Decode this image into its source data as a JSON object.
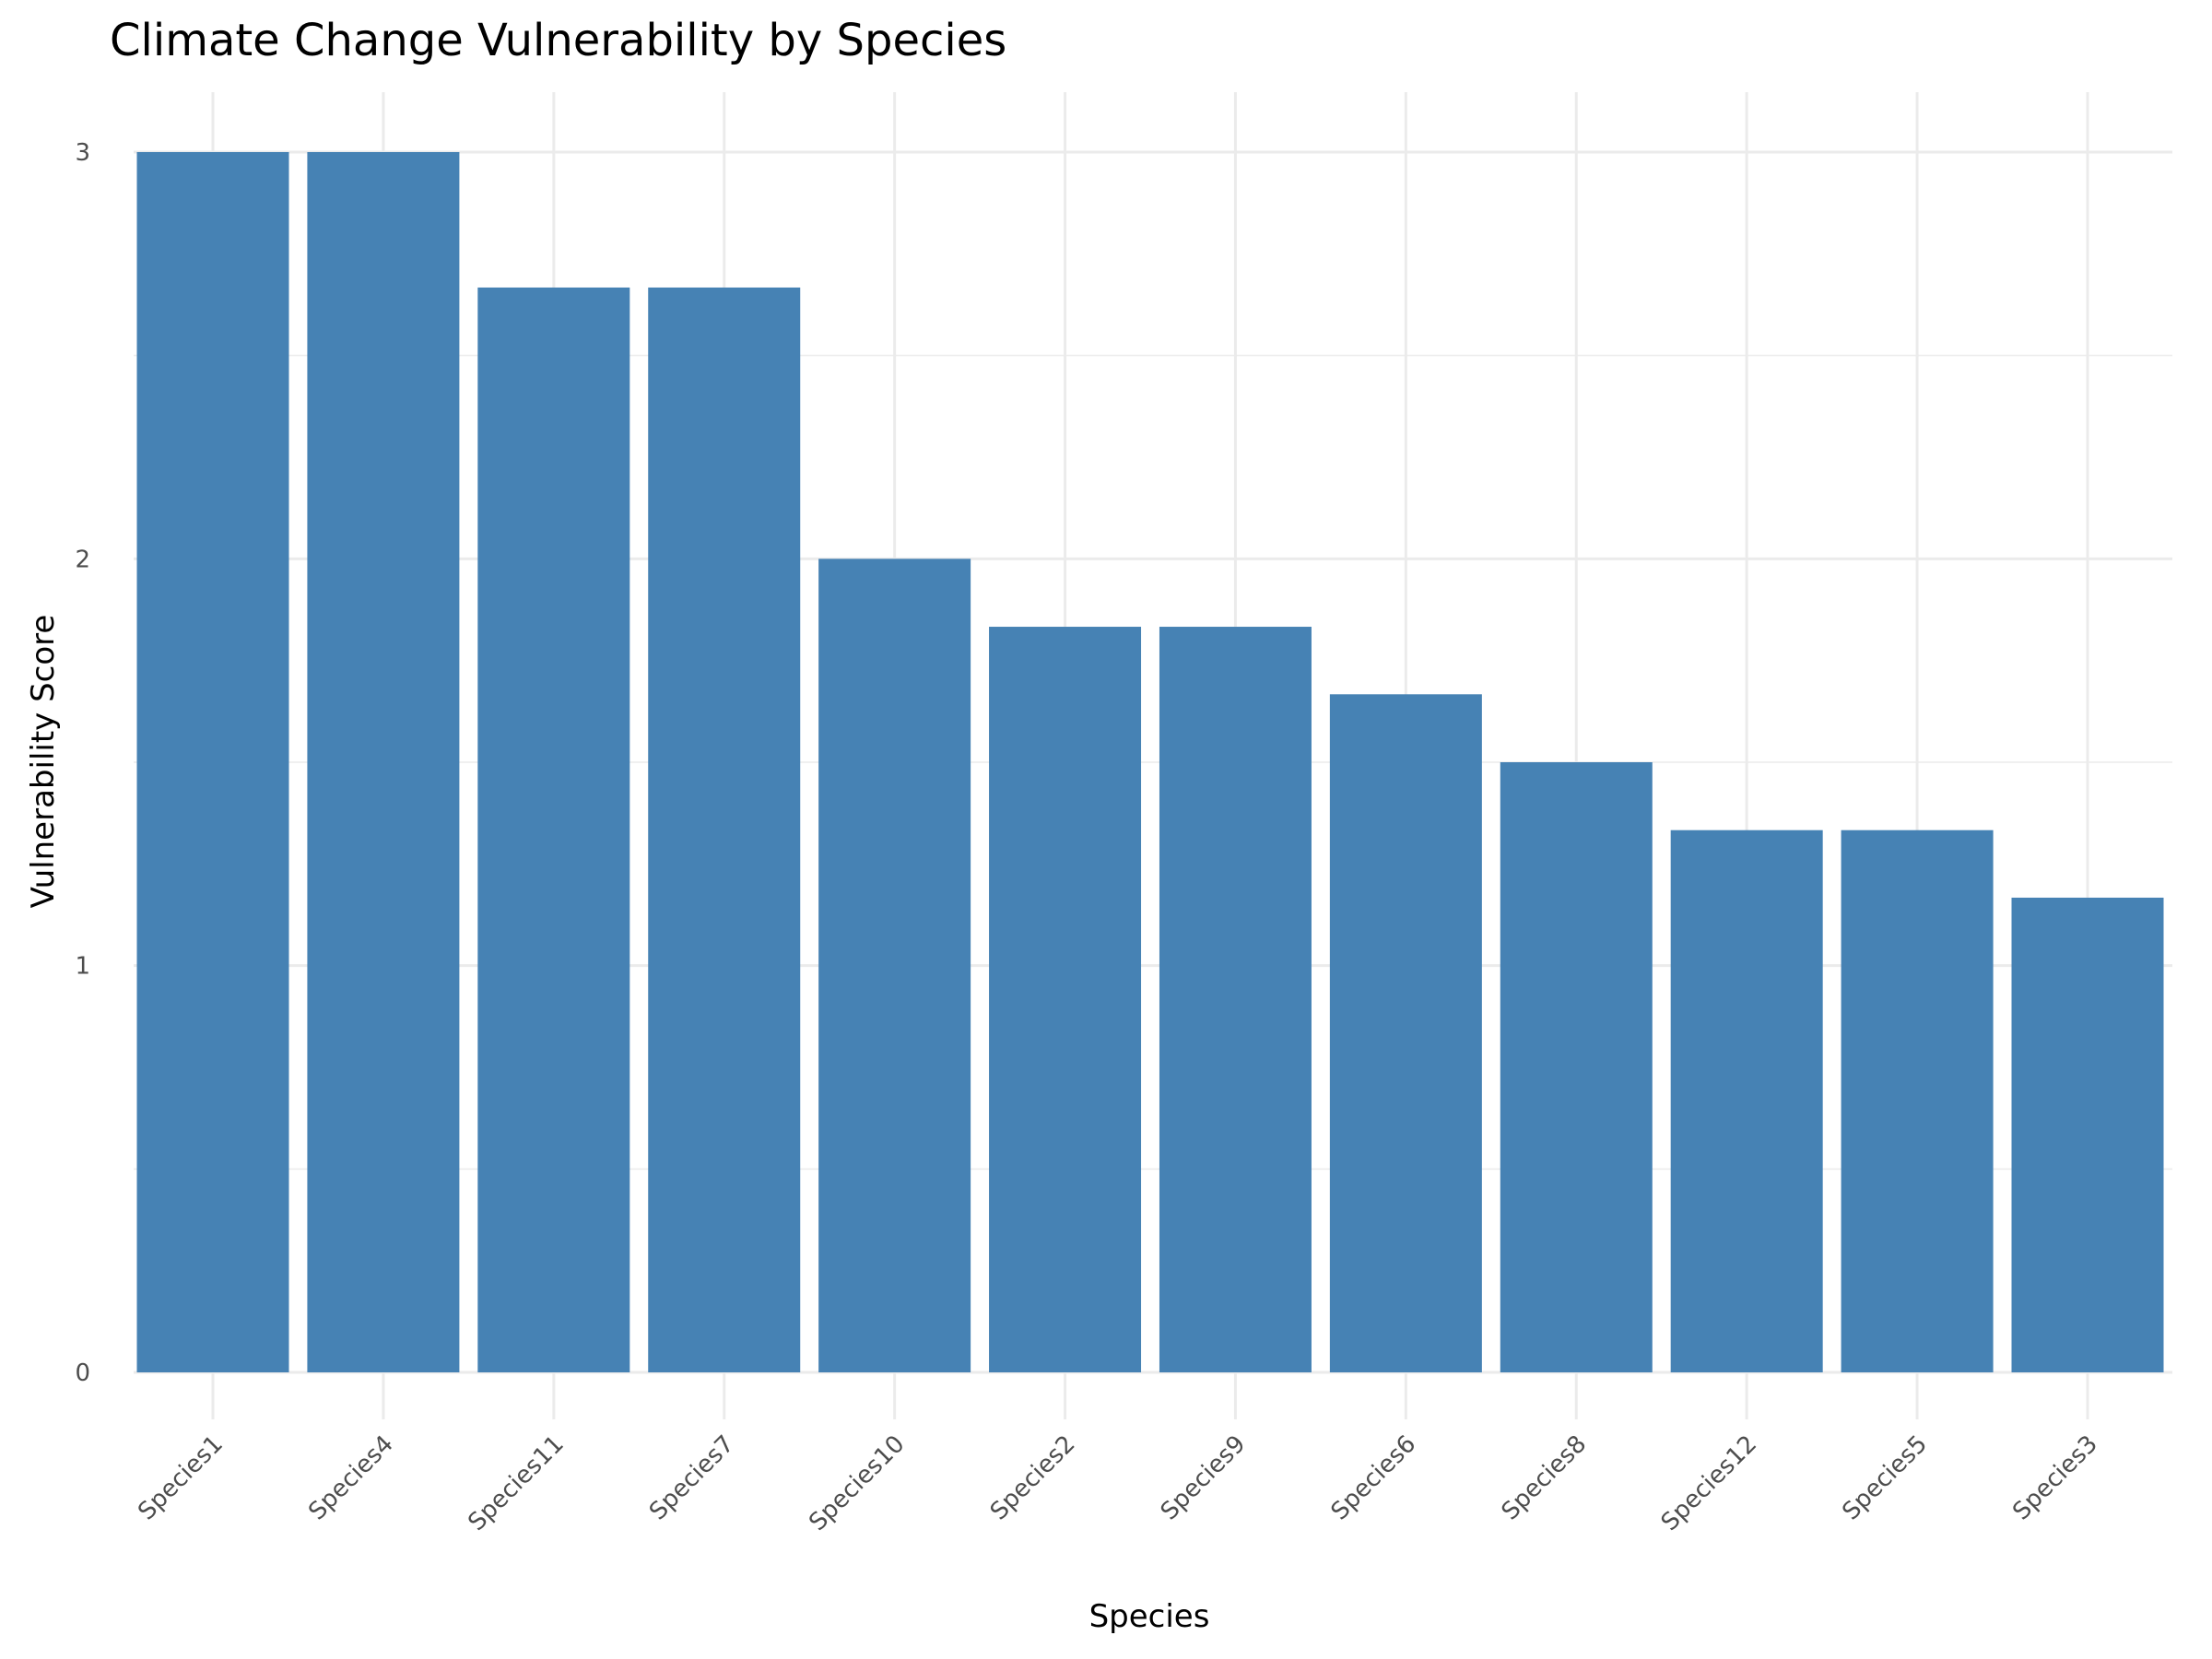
{
  "chart_data": {
    "type": "bar",
    "title": "Climate Change Vulnerability by Species",
    "xlabel": "Species",
    "ylabel": "Vulnerability Score",
    "categories": [
      "Species1",
      "Species4",
      "Species11",
      "Species7",
      "Species10",
      "Species2",
      "Species9",
      "Species6",
      "Species8",
      "Species12",
      "Species5",
      "Species3"
    ],
    "values": [
      3,
      3,
      2.667,
      2.667,
      2,
      1.833,
      1.833,
      1.667,
      1.5,
      1.333,
      1.333,
      1.167
    ],
    "ylim": [
      0,
      3.15
    ],
    "yticks": [
      0,
      1,
      2,
      3
    ],
    "grid": true,
    "bar_color": "#4682B4",
    "grid_color": "#EBEBEB"
  }
}
